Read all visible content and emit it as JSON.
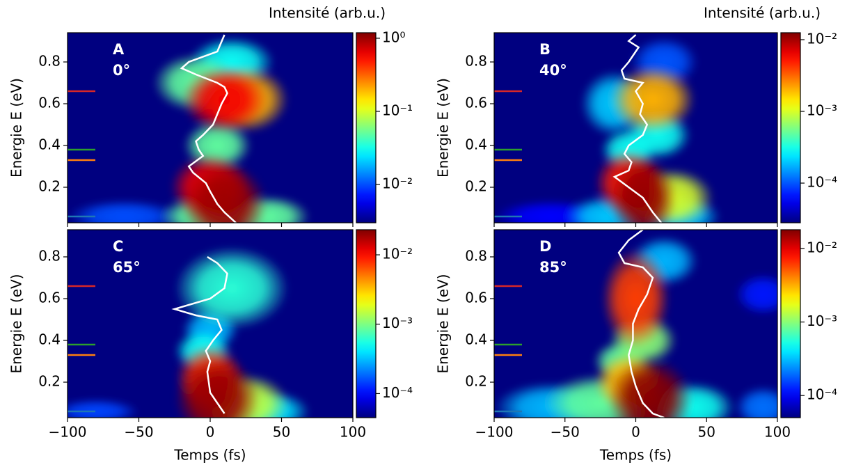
{
  "chart_data": [
    {
      "type": "heatmap",
      "panel": "A",
      "angle": "0°",
      "ylabel": "Energie E (eV)",
      "colorbar_label": "Intensité (arb.u.)",
      "xlim": [
        -100,
        100
      ],
      "ylim": [
        0.03,
        0.94
      ],
      "xticks": [
        -100,
        -50,
        0,
        50,
        100
      ],
      "xtick_labels": false,
      "yticks": [
        0.2,
        0.4,
        0.6,
        0.8
      ],
      "colorscale": "log",
      "colormap": "jet",
      "clim": [
        0.003,
        1.19
      ],
      "cticks": [
        {
          "value": 1,
          "label": "10⁰"
        },
        {
          "value": 0.1,
          "label": "10⁻¹"
        },
        {
          "value": 0.01,
          "label": "10⁻²"
        }
      ],
      "blobs": [
        {
          "t": -60,
          "e": 0.06,
          "dt": 20,
          "de": 0.04,
          "value": 0.01
        },
        {
          "t": 15,
          "e": 0.8,
          "dt": 15,
          "de": 0.06,
          "value": 0.03
        },
        {
          "t": -5,
          "e": 0.06,
          "dt": 15,
          "de": 0.05,
          "value": 0.05
        },
        {
          "t": 40,
          "e": 0.06,
          "dt": 15,
          "de": 0.05,
          "value": 0.05
        },
        {
          "t": 5,
          "e": 0.4,
          "dt": 12,
          "de": 0.06,
          "value": 0.05
        },
        {
          "t": -10,
          "e": 0.7,
          "dt": 15,
          "de": 0.07,
          "value": 0.05
        },
        {
          "t": 25,
          "e": 0.62,
          "dt": 15,
          "de": 0.08,
          "value": 0.2
        },
        {
          "t": 0,
          "e": 0.2,
          "dt": 14,
          "de": 0.08,
          "value": 0.6
        },
        {
          "t": 10,
          "e": 0.62,
          "dt": 15,
          "de": 0.08,
          "value": 0.6
        },
        {
          "t": 10,
          "e": 0.12,
          "dt": 15,
          "de": 0.1,
          "value": 1.0
        }
      ],
      "curve": {
        "x": [
          10,
          5,
          -15,
          -20,
          -10,
          5,
          10,
          12,
          8,
          5,
          2,
          -5,
          -10,
          -8,
          -5,
          -15,
          -12,
          -3,
          0,
          5,
          10,
          18
        ],
        "y": [
          0.93,
          0.85,
          0.8,
          0.77,
          0.74,
          0.7,
          0.68,
          0.65,
          0.6,
          0.55,
          0.5,
          0.45,
          0.42,
          0.38,
          0.35,
          0.3,
          0.27,
          0.22,
          0.18,
          0.12,
          0.08,
          0.03
        ]
      },
      "levels": [
        {
          "color": "#d62728",
          "value": 0.66
        },
        {
          "color": "#2ca02c",
          "value": 0.38
        },
        {
          "color": "#ff7f0e",
          "value": 0.33
        },
        {
          "color": "#1f77b4",
          "value": 0.06
        }
      ]
    },
    {
      "type": "heatmap",
      "panel": "B",
      "angle": "40°",
      "ylabel": "Energie E (eV)",
      "colorbar_label": "Intensité (arb.u.)",
      "xlim": [
        -100,
        100
      ],
      "ylim": [
        0.03,
        0.94
      ],
      "xticks": [
        -100,
        -50,
        0,
        50,
        100
      ],
      "xtick_labels": false,
      "yticks": [
        0.2,
        0.4,
        0.6,
        0.8
      ],
      "colorscale": "log",
      "colormap": "jet",
      "clim": [
        2.8e-05,
        0.0125
      ],
      "cticks": [
        {
          "value": 0.01,
          "label": "10⁻²"
        },
        {
          "value": 0.001,
          "label": "10⁻³"
        },
        {
          "value": 0.0001,
          "label": "10⁻⁴"
        }
      ],
      "blobs": [
        {
          "t": -60,
          "e": 0.06,
          "dt": 20,
          "de": 0.04,
          "value": 6e-05
        },
        {
          "t": 20,
          "e": 0.8,
          "dt": 12,
          "de": 0.06,
          "value": 0.0001
        },
        {
          "t": -20,
          "e": 0.06,
          "dt": 15,
          "de": 0.05,
          "value": 0.0002
        },
        {
          "t": 30,
          "e": 0.06,
          "dt": 15,
          "de": 0.05,
          "value": 0.0002
        },
        {
          "t": -15,
          "e": 0.6,
          "dt": 12,
          "de": 0.08,
          "value": 0.0002
        },
        {
          "t": 15,
          "e": 0.45,
          "dt": 12,
          "de": 0.06,
          "value": 0.0003
        },
        {
          "t": -5,
          "e": 0.38,
          "dt": 10,
          "de": 0.05,
          "value": 0.0003
        },
        {
          "t": 25,
          "e": 0.15,
          "dt": 15,
          "de": 0.07,
          "value": 0.001
        },
        {
          "t": 12,
          "e": 0.62,
          "dt": 15,
          "de": 0.08,
          "value": 0.002
        },
        {
          "t": -5,
          "e": 0.22,
          "dt": 12,
          "de": 0.08,
          "value": 0.005
        },
        {
          "t": 5,
          "e": 0.15,
          "dt": 12,
          "de": 0.1,
          "value": 0.011
        }
      ],
      "curve": {
        "x": [
          0,
          -5,
          2,
          -5,
          -10,
          -8,
          5,
          0,
          5,
          3,
          8,
          5,
          -5,
          -8,
          -3,
          -5,
          -15,
          -5,
          5,
          12,
          18
        ],
        "y": [
          0.93,
          0.9,
          0.87,
          0.8,
          0.76,
          0.72,
          0.7,
          0.66,
          0.6,
          0.55,
          0.5,
          0.45,
          0.4,
          0.36,
          0.32,
          0.28,
          0.25,
          0.2,
          0.15,
          0.08,
          0.03
        ]
      },
      "levels": [
        {
          "color": "#d62728",
          "value": 0.66
        },
        {
          "color": "#2ca02c",
          "value": 0.38
        },
        {
          "color": "#ff7f0e",
          "value": 0.33
        },
        {
          "color": "#1f77b4",
          "value": 0.06
        }
      ]
    },
    {
      "type": "heatmap",
      "panel": "C",
      "angle": "65°",
      "ylabel": "Energie E (eV)",
      "xlabel": "Temps (fs)",
      "xlim": [
        -100,
        100
      ],
      "ylim": [
        0.03,
        0.93
      ],
      "xticks": [
        {
          "value": -100,
          "label": "−100"
        },
        {
          "value": -50,
          "label": "−50"
        },
        0,
        50,
        100
      ],
      "xtick_labels": true,
      "yticks": [
        0.2,
        0.4,
        0.6,
        0.8
      ],
      "colorscale": "log",
      "colormap": "jet",
      "clim": [
        4.5e-05,
        0.023
      ],
      "cticks": [
        {
          "value": 0.01,
          "label": "10⁻²"
        },
        {
          "value": 0.001,
          "label": "10⁻³"
        },
        {
          "value": 0.0001,
          "label": "10⁻⁴"
        }
      ],
      "blobs": [
        {
          "t": -80,
          "e": 0.06,
          "dt": 15,
          "de": 0.03,
          "value": 0.00015
        },
        {
          "t": 0,
          "e": 0.45,
          "dt": 10,
          "de": 0.05,
          "value": 0.0003
        },
        {
          "t": 40,
          "e": 0.06,
          "dt": 15,
          "de": 0.05,
          "value": 0.0004
        },
        {
          "t": -5,
          "e": 0.35,
          "dt": 10,
          "de": 0.05,
          "value": 0.0005
        },
        {
          "t": 15,
          "e": 0.65,
          "dt": 20,
          "de": 0.1,
          "value": 0.0006
        },
        {
          "t": 25,
          "e": 0.1,
          "dt": 15,
          "de": 0.07,
          "value": 0.0015
        },
        {
          "t": 0,
          "e": 0.22,
          "dt": 12,
          "de": 0.08,
          "value": 0.008
        },
        {
          "t": 5,
          "e": 0.12,
          "dt": 15,
          "de": 0.1,
          "value": 0.02
        }
      ],
      "curve": {
        "x": [
          -2,
          5,
          12,
          10,
          0,
          -25,
          -10,
          5,
          8,
          2,
          -3,
          0,
          -2,
          0,
          5,
          10
        ],
        "y": [
          0.8,
          0.77,
          0.72,
          0.65,
          0.6,
          0.55,
          0.52,
          0.5,
          0.45,
          0.4,
          0.35,
          0.3,
          0.25,
          0.15,
          0.1,
          0.05
        ]
      },
      "levels": [
        {
          "color": "#d62728",
          "value": 0.66
        },
        {
          "color": "#2ca02c",
          "value": 0.38
        },
        {
          "color": "#ff7f0e",
          "value": 0.33
        },
        {
          "color": "#1f77b4",
          "value": 0.06
        }
      ]
    },
    {
      "type": "heatmap",
      "panel": "D",
      "angle": "85°",
      "ylabel": "Energie E (eV)",
      "xlabel": "Temps (fs)",
      "xlim": [
        -100,
        100
      ],
      "ylim": [
        0.03,
        0.93
      ],
      "xticks": [
        {
          "value": -100,
          "label": "−100"
        },
        {
          "value": -50,
          "label": "−50"
        },
        0,
        50,
        100
      ],
      "xtick_labels": true,
      "yticks": [
        0.2,
        0.4,
        0.6,
        0.8
      ],
      "colorscale": "log",
      "colormap": "jet",
      "clim": [
        5e-05,
        0.018
      ],
      "cticks": [
        {
          "value": 0.01,
          "label": "10⁻²"
        },
        {
          "value": 0.001,
          "label": "10⁻³"
        },
        {
          "value": 0.0001,
          "label": "10⁻⁴"
        }
      ],
      "blobs": [
        {
          "t": 90,
          "e": 0.62,
          "dt": 10,
          "de": 0.05,
          "value": 0.00012
        },
        {
          "t": 90,
          "e": 0.08,
          "dt": 10,
          "de": 0.05,
          "value": 0.0002
        },
        {
          "t": -60,
          "e": 0.08,
          "dt": 20,
          "de": 0.06,
          "value": 0.0003
        },
        {
          "t": 20,
          "e": 0.78,
          "dt": 12,
          "de": 0.06,
          "value": 0.0003
        },
        {
          "t": 40,
          "e": 0.08,
          "dt": 15,
          "de": 0.06,
          "value": 0.0005
        },
        {
          "t": -25,
          "e": 0.1,
          "dt": 20,
          "de": 0.07,
          "value": 0.0008
        },
        {
          "t": -10,
          "e": 0.3,
          "dt": 10,
          "de": 0.05,
          "value": 0.0008
        },
        {
          "t": 5,
          "e": 0.4,
          "dt": 12,
          "de": 0.06,
          "value": 0.001
        },
        {
          "t": -5,
          "e": 0.2,
          "dt": 12,
          "de": 0.07,
          "value": 0.003
        },
        {
          "t": 0,
          "e": 0.6,
          "dt": 12,
          "de": 0.12,
          "value": 0.006
        },
        {
          "t": 10,
          "e": 0.12,
          "dt": 15,
          "de": 0.1,
          "value": 0.017
        }
      ],
      "curve": {
        "x": [
          5,
          -5,
          -12,
          -8,
          5,
          12,
          8,
          2,
          -2,
          -2,
          -5,
          -3,
          0,
          5,
          12,
          20
        ],
        "y": [
          0.93,
          0.88,
          0.82,
          0.77,
          0.75,
          0.7,
          0.62,
          0.55,
          0.48,
          0.4,
          0.33,
          0.25,
          0.18,
          0.1,
          0.05,
          0.03
        ]
      },
      "levels": [
        {
          "color": "#d62728",
          "value": 0.66
        },
        {
          "color": "#2ca02c",
          "value": 0.38
        },
        {
          "color": "#ff7f0e",
          "value": 0.33
        },
        {
          "color": "#1f77b4",
          "value": 0.06
        }
      ]
    }
  ]
}
